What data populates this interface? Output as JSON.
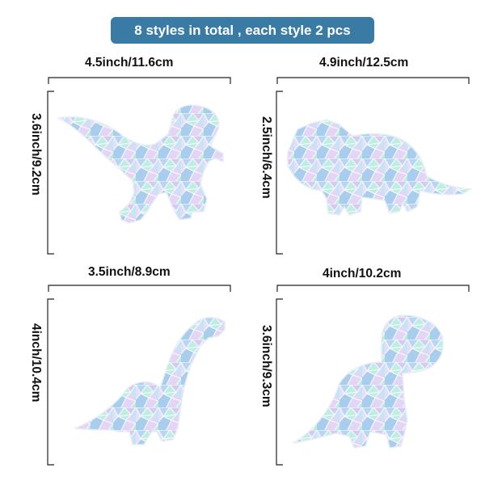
{
  "banner": {
    "text": "8 styles in total , each style 2 pcs",
    "color": "#3a7ba6"
  },
  "items": [
    {
      "width_label": "4.5inch/11.6cm",
      "height_label": "3.6inch/9.2cm",
      "shape": "raptor"
    },
    {
      "width_label": "4.9inch/12.5cm",
      "height_label": "2.5inch/6.4cm",
      "shape": "triceratops"
    },
    {
      "width_label": "3.5inch/8.9cm",
      "height_label": "4inch/10.4cm",
      "shape": "long-neck"
    },
    {
      "width_label": "4inch/10.2cm",
      "height_label": "3.6inch/9.3cm",
      "shape": "round-head"
    }
  ],
  "colors": {
    "line": "#222222",
    "glass_1": "#b9d8f0",
    "glass_2": "#d9c8f2",
    "glass_3": "#bfeee0",
    "glass_edge": "#f2f6fb"
  }
}
